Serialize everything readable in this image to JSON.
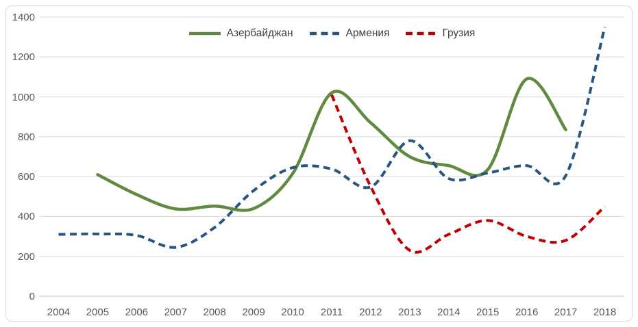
{
  "chart_data": {
    "type": "line",
    "title": "",
    "categories": [
      "2004",
      "2005",
      "2006",
      "2007",
      "2008",
      "2009",
      "2010",
      "2011",
      "2012",
      "2013",
      "2014",
      "2015",
      "2016",
      "2017",
      "2018"
    ],
    "series": [
      {
        "name": "Азербайджан",
        "color": "#5F8A3F",
        "line_style": "solid",
        "values": [
          null,
          610,
          510,
          438,
          452,
          440,
          615,
          1020,
          870,
          700,
          655,
          635,
          1090,
          835,
          null
        ]
      },
      {
        "name": "Армения",
        "color": "#285582",
        "line_style": "dashed",
        "values": [
          310,
          312,
          305,
          245,
          345,
          530,
          645,
          638,
          548,
          780,
          590,
          618,
          655,
          605,
          1350
        ]
      },
      {
        "name": "Грузия",
        "color": "#C00000",
        "line_style": "dashed",
        "values": [
          null,
          null,
          null,
          null,
          null,
          null,
          null,
          1010,
          550,
          230,
          310,
          380,
          300,
          280,
          450
        ]
      }
    ],
    "y_ticks": [
      0,
      200,
      400,
      600,
      800,
      1000,
      1200,
      1400
    ],
    "ylim": [
      0,
      1400
    ],
    "grid": "horizontal",
    "legend_position": "top-center",
    "colors": {
      "gridline": "#D9D9D9",
      "axis_line": "#BFBFBF",
      "tick_text": "#595959",
      "legend_text": "#404040",
      "background": "#FFFFFF",
      "frame_border": "#D8D8D8"
    }
  }
}
